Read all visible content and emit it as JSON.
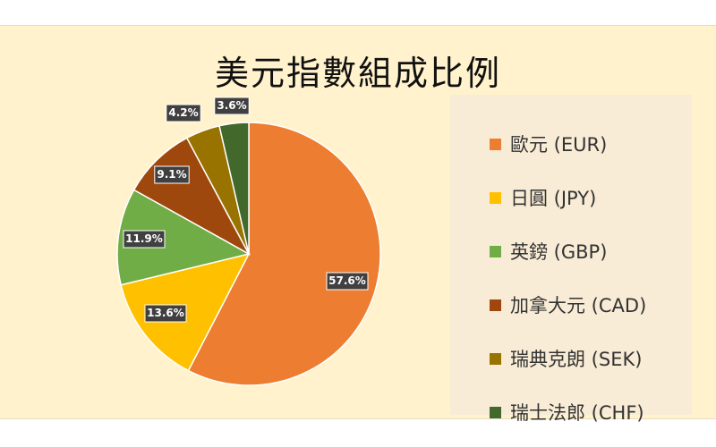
{
  "chart_data": {
    "type": "pie",
    "title": "美元指數組成比例",
    "legend_position": "right",
    "slices": [
      {
        "label": "歐元 (EUR)",
        "value": 57.6,
        "value_label": "57.6%",
        "color": "#ed7d31"
      },
      {
        "label": "日圓 (JPY)",
        "value": 13.6,
        "value_label": "13.6%",
        "color": "#ffc000"
      },
      {
        "label": "英鎊 (GBP)",
        "value": 11.9,
        "value_label": "11.9%",
        "color": "#70ad47"
      },
      {
        "label": "加拿大元 (CAD)",
        "value": 9.1,
        "value_label": "9.1%",
        "color": "#9e480e"
      },
      {
        "label": "瑞典克朗 (SEK)",
        "value": 4.2,
        "value_label": "4.2%",
        "color": "#997300"
      },
      {
        "label": "瑞士法郎 (CHF)",
        "value": 3.6,
        "value_label": "3.6%",
        "color": "#43682b"
      }
    ]
  }
}
